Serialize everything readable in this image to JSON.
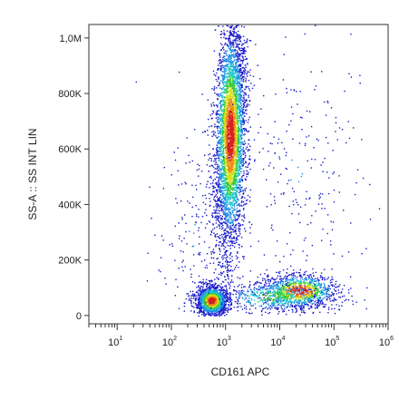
{
  "chart_data": {
    "type": "scatter",
    "title": "",
    "xlabel": "CD161 APC",
    "ylabel": "SS-A :: SS INT LIN",
    "x_scale": "log",
    "xlim": [
      3,
      1000000
    ],
    "ylim": [
      -30000,
      1048576
    ],
    "grid": false,
    "legend": "none",
    "x_ticks": [
      {
        "value": 10,
        "base": "10",
        "exp": "1"
      },
      {
        "value": 100,
        "base": "10",
        "exp": "2"
      },
      {
        "value": 1000,
        "base": "10",
        "exp": "3"
      },
      {
        "value": 10000,
        "base": "10",
        "exp": "4"
      },
      {
        "value": 100000,
        "base": "10",
        "exp": "5"
      },
      {
        "value": 1000000,
        "base": "10",
        "exp": "6"
      }
    ],
    "y_ticks": [
      {
        "value": 0,
        "label": "0"
      },
      {
        "value": 200000,
        "label": "200K"
      },
      {
        "value": 400000,
        "label": "400K"
      },
      {
        "value": 600000,
        "label": "600K"
      },
      {
        "value": 800000,
        "label": "800K"
      },
      {
        "value": 1000000,
        "label": "1,0M"
      }
    ],
    "density_colors": [
      "#1a1acc",
      "#1e8fe6",
      "#22c9c9",
      "#35c935",
      "#d8e01a",
      "#ee8a14",
      "#d61e1e"
    ],
    "populations": [
      {
        "name": "",
        "x_center": 1200,
        "y_center": 650000,
        "x_spread_decades": 0.14,
        "y_sd": 210000,
        "y_min": 80000,
        "y_max": 1048576,
        "tilt": 0.08,
        "count": 4800,
        "peak_y": 650000
      },
      {
        "name": "",
        "x_center": 550,
        "y_center": 55000,
        "x_spread_decades": 0.14,
        "y_sd": 28000,
        "y_min": 0,
        "y_max": 180000,
        "tilt": 0,
        "count": 1600,
        "peak_y": 55000
      },
      {
        "name": "",
        "x_center": 22000,
        "y_center": 90000,
        "x_spread_decades": 0.35,
        "y_sd": 32000,
        "y_min": 0,
        "y_max": 200000,
        "tilt": 0,
        "count": 1100,
        "peak_y": 90000
      },
      {
        "name": "",
        "x_center": 8000,
        "y_center": 70000,
        "x_spread_decades": 0.5,
        "y_sd": 30000,
        "y_min": 0,
        "y_max": 160000,
        "tilt": 0,
        "count": 500,
        "peak_y": 70000
      },
      {
        "name": "",
        "x_center": 20000,
        "y_center": 520000,
        "x_spread_decades": 0.6,
        "y_sd": 260000,
        "y_min": 200000,
        "y_max": 1048576,
        "tilt": 0,
        "count": 220,
        "peak_y": 520000
      },
      {
        "name": "",
        "x_center": 250,
        "y_center": 280000,
        "x_spread_decades": 0.35,
        "y_sd": 220000,
        "y_min": 0,
        "y_max": 900000,
        "tilt": 0,
        "count": 180,
        "peak_y": 280000
      }
    ]
  }
}
